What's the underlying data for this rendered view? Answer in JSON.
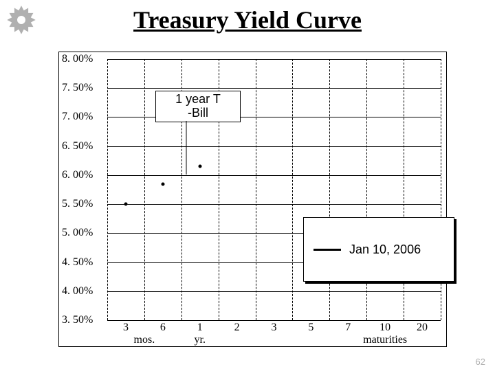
{
  "title": "Treasury Yield Curve",
  "page_number": "62",
  "gear": {
    "color": "#b0b0b0",
    "size": 46
  },
  "chart": {
    "type": "scatter",
    "background_color": "#ffffff",
    "border_color": "#000000",
    "grid": {
      "h_color": "#000000",
      "v_color": "#000000",
      "v_dash": true
    },
    "y_axis": {
      "min": 3.5,
      "max": 8.0,
      "step": 0.5,
      "labels": [
        "8. 00%",
        "7. 50%",
        "7. 00%",
        "6. 50%",
        "6. 00%",
        "5. 50%",
        "5. 00%",
        "4. 50%",
        "4. 00%",
        "3. 50%"
      ],
      "label_fontsize": 16
    },
    "x_axis": {
      "categories": [
        "3",
        "6",
        "1",
        "2",
        "3",
        "5",
        "7",
        "10",
        "20"
      ],
      "sub_left": "mos.",
      "sub_right": "yr.",
      "maturities_label": "maturities",
      "label_fontsize": 16
    },
    "data_points": [
      {
        "x_index": 0,
        "y_value": 5.5
      },
      {
        "x_index": 1,
        "y_value": 5.85
      },
      {
        "x_index": 2,
        "y_value": 6.15
      }
    ],
    "point_style": {
      "color": "#000000",
      "size": 5
    },
    "annotation": {
      "line1": "1 year  T",
      "line2": "-Bill"
    },
    "legend": {
      "label": "Jan 10, 2006",
      "line_color": "#000000",
      "line_width": 3
    }
  }
}
